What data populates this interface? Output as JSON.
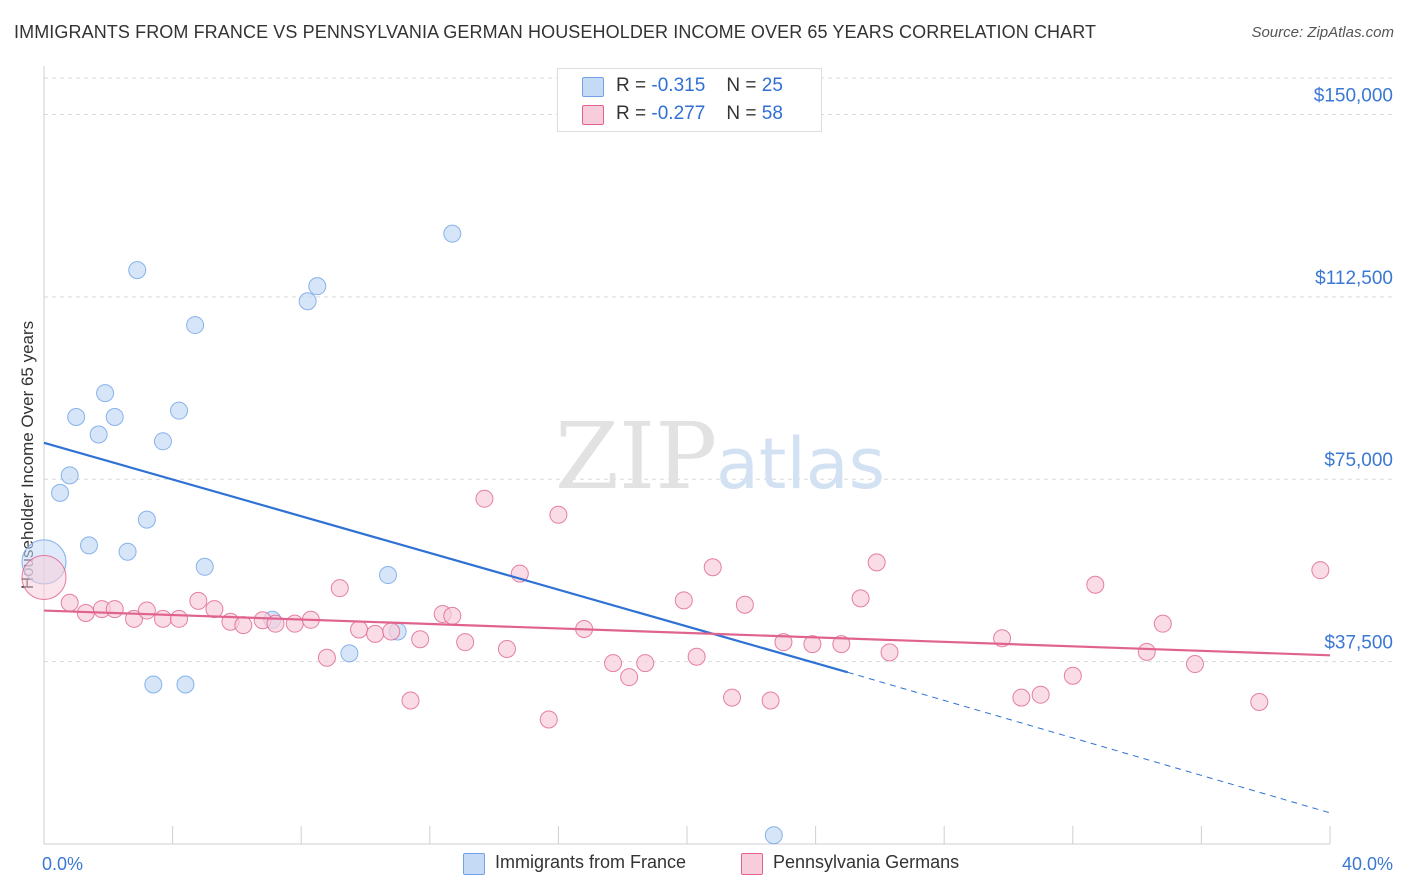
{
  "title": "IMMIGRANTS FROM FRANCE VS PENNSYLVANIA GERMAN HOUSEHOLDER INCOME OVER 65 YEARS CORRELATION CHART",
  "source": "Source: ZipAtlas.com",
  "watermark": {
    "zip": "ZIP",
    "atlas": "atlas"
  },
  "stats": [
    {
      "r_label": "R =",
      "r_value": "-0.315",
      "n_label": "N =",
      "n_value": "25",
      "color": "#a9c8f0"
    },
    {
      "r_label": "R =",
      "r_value": "-0.277",
      "n_label": "N =",
      "n_value": "58",
      "color": "#f6b8cc"
    }
  ],
  "chart_data": {
    "type": "scatter",
    "title": "IMMIGRANTS FROM FRANCE VS PENNSYLVANIA GERMAN HOUSEHOLDER INCOME OVER 65 YEARS CORRELATION CHART",
    "xlabel": "",
    "ylabel": "Householder Income Over 65 years",
    "xlim": [
      0,
      40
    ],
    "ylim": [
      0,
      157500
    ],
    "x_tick_labels": [
      "0.0%",
      "40.0%"
    ],
    "y_ticks": [
      37500,
      75000,
      112500,
      150000
    ],
    "y_tick_labels": [
      "$37,500",
      "$75,000",
      "$112,500",
      "$150,000"
    ],
    "grid": true,
    "legend_position": "bottom",
    "series": [
      {
        "name": "Immigrants from France",
        "color": "#6fa3e6",
        "fill": "#c5dbf5",
        "trend": {
          "x": [
            0,
            25
          ],
          "y": [
            82500,
            35300
          ],
          "dashed_to": [
            40,
            6400
          ]
        },
        "points": [
          {
            "x": 0.0,
            "y": 58000,
            "big": true
          },
          {
            "x": 0.5,
            "y": 72200
          },
          {
            "x": 0.8,
            "y": 75800
          },
          {
            "x": 1.0,
            "y": 87800
          },
          {
            "x": 1.4,
            "y": 61400
          },
          {
            "x": 1.7,
            "y": 84200
          },
          {
            "x": 1.9,
            "y": 92700
          },
          {
            "x": 2.2,
            "y": 87800
          },
          {
            "x": 2.6,
            "y": 60100
          },
          {
            "x": 2.9,
            "y": 118000
          },
          {
            "x": 3.2,
            "y": 66700
          },
          {
            "x": 3.4,
            "y": 32800
          },
          {
            "x": 3.7,
            "y": 82800
          },
          {
            "x": 4.2,
            "y": 89100
          },
          {
            "x": 4.4,
            "y": 32800
          },
          {
            "x": 4.7,
            "y": 106700
          },
          {
            "x": 5.0,
            "y": 57000
          },
          {
            "x": 7.1,
            "y": 46100
          },
          {
            "x": 8.2,
            "y": 111600
          },
          {
            "x": 8.5,
            "y": 114700
          },
          {
            "x": 9.5,
            "y": 39200
          },
          {
            "x": 10.7,
            "y": 55300
          },
          {
            "x": 11.0,
            "y": 43700
          },
          {
            "x": 12.7,
            "y": 125500
          },
          {
            "x": 22.7,
            "y": 1800
          }
        ]
      },
      {
        "name": "Pennsylvania Germans",
        "color": "#e0638f",
        "fill": "#f8cddb",
        "trend": {
          "x": [
            0,
            40
          ],
          "y": [
            48000,
            38800
          ]
        },
        "points": [
          {
            "x": 0.0,
            "y": 54800,
            "big": true
          },
          {
            "x": 0.8,
            "y": 49600
          },
          {
            "x": 1.3,
            "y": 47500
          },
          {
            "x": 1.8,
            "y": 48300
          },
          {
            "x": 2.2,
            "y": 48300
          },
          {
            "x": 2.8,
            "y": 46300
          },
          {
            "x": 3.2,
            "y": 48000
          },
          {
            "x": 3.7,
            "y": 46300
          },
          {
            "x": 4.2,
            "y": 46300
          },
          {
            "x": 4.8,
            "y": 50000
          },
          {
            "x": 5.3,
            "y": 48300
          },
          {
            "x": 5.8,
            "y": 45700
          },
          {
            "x": 6.2,
            "y": 45000
          },
          {
            "x": 6.8,
            "y": 46000
          },
          {
            "x": 7.2,
            "y": 45300
          },
          {
            "x": 7.8,
            "y": 45300
          },
          {
            "x": 8.3,
            "y": 46100
          },
          {
            "x": 8.8,
            "y": 38300
          },
          {
            "x": 9.2,
            "y": 52600
          },
          {
            "x": 9.8,
            "y": 44100
          },
          {
            "x": 10.3,
            "y": 43200
          },
          {
            "x": 10.8,
            "y": 43700
          },
          {
            "x": 11.4,
            "y": 29500
          },
          {
            "x": 11.7,
            "y": 42100
          },
          {
            "x": 12.4,
            "y": 47300
          },
          {
            "x": 12.7,
            "y": 46900
          },
          {
            "x": 13.1,
            "y": 41500
          },
          {
            "x": 13.7,
            "y": 71000
          },
          {
            "x": 14.4,
            "y": 40100
          },
          {
            "x": 14.8,
            "y": 55600
          },
          {
            "x": 15.7,
            "y": 25600
          },
          {
            "x": 16.0,
            "y": 67700
          },
          {
            "x": 16.8,
            "y": 44200
          },
          {
            "x": 17.7,
            "y": 37200
          },
          {
            "x": 18.2,
            "y": 34300
          },
          {
            "x": 18.7,
            "y": 37200
          },
          {
            "x": 19.9,
            "y": 50100
          },
          {
            "x": 20.3,
            "y": 38500
          },
          {
            "x": 20.8,
            "y": 56900
          },
          {
            "x": 21.4,
            "y": 30100
          },
          {
            "x": 21.8,
            "y": 49200
          },
          {
            "x": 22.6,
            "y": 29500
          },
          {
            "x": 23.0,
            "y": 41500
          },
          {
            "x": 23.9,
            "y": 41100
          },
          {
            "x": 24.8,
            "y": 41100
          },
          {
            "x": 25.4,
            "y": 50500
          },
          {
            "x": 25.9,
            "y": 57900
          },
          {
            "x": 26.3,
            "y": 39400
          },
          {
            "x": 29.8,
            "y": 42300
          },
          {
            "x": 30.4,
            "y": 30100
          },
          {
            "x": 31.0,
            "y": 30700
          },
          {
            "x": 32.0,
            "y": 34600
          },
          {
            "x": 32.7,
            "y": 53300
          },
          {
            "x": 34.3,
            "y": 39500
          },
          {
            "x": 34.8,
            "y": 45300
          },
          {
            "x": 35.8,
            "y": 37000
          },
          {
            "x": 37.8,
            "y": 29200
          },
          {
            "x": 39.7,
            "y": 56300
          }
        ]
      }
    ]
  }
}
